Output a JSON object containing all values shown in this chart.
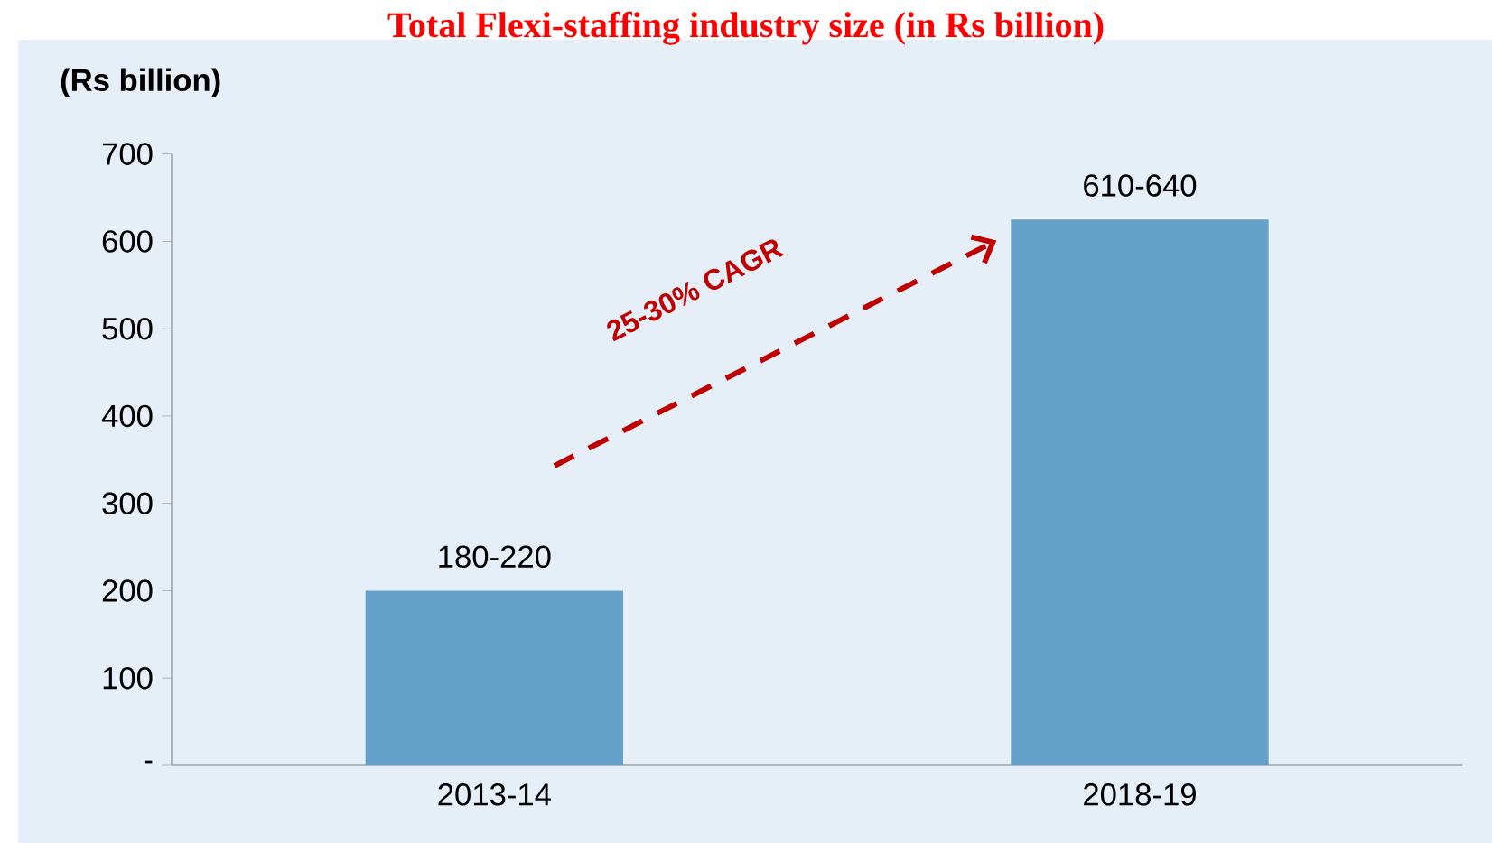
{
  "chart_data": {
    "type": "bar",
    "title": "Total Flexi-staffing industry size (in Rs billion)",
    "ylabel": "(Rs billion)",
    "categories": [
      "2013-14",
      "2018-19"
    ],
    "values": [
      200,
      625
    ],
    "color": "#65a1c9",
    "value_labels": [
      "180-220",
      "610-640"
    ],
    "ylim": [
      0,
      700
    ],
    "yticks": [
      {
        "value": 0,
        "label": "-"
      },
      100,
      200,
      300,
      400,
      500,
      600,
      700
    ],
    "annotations": [
      "25-30% CAGR"
    ],
    "grid": false
  }
}
